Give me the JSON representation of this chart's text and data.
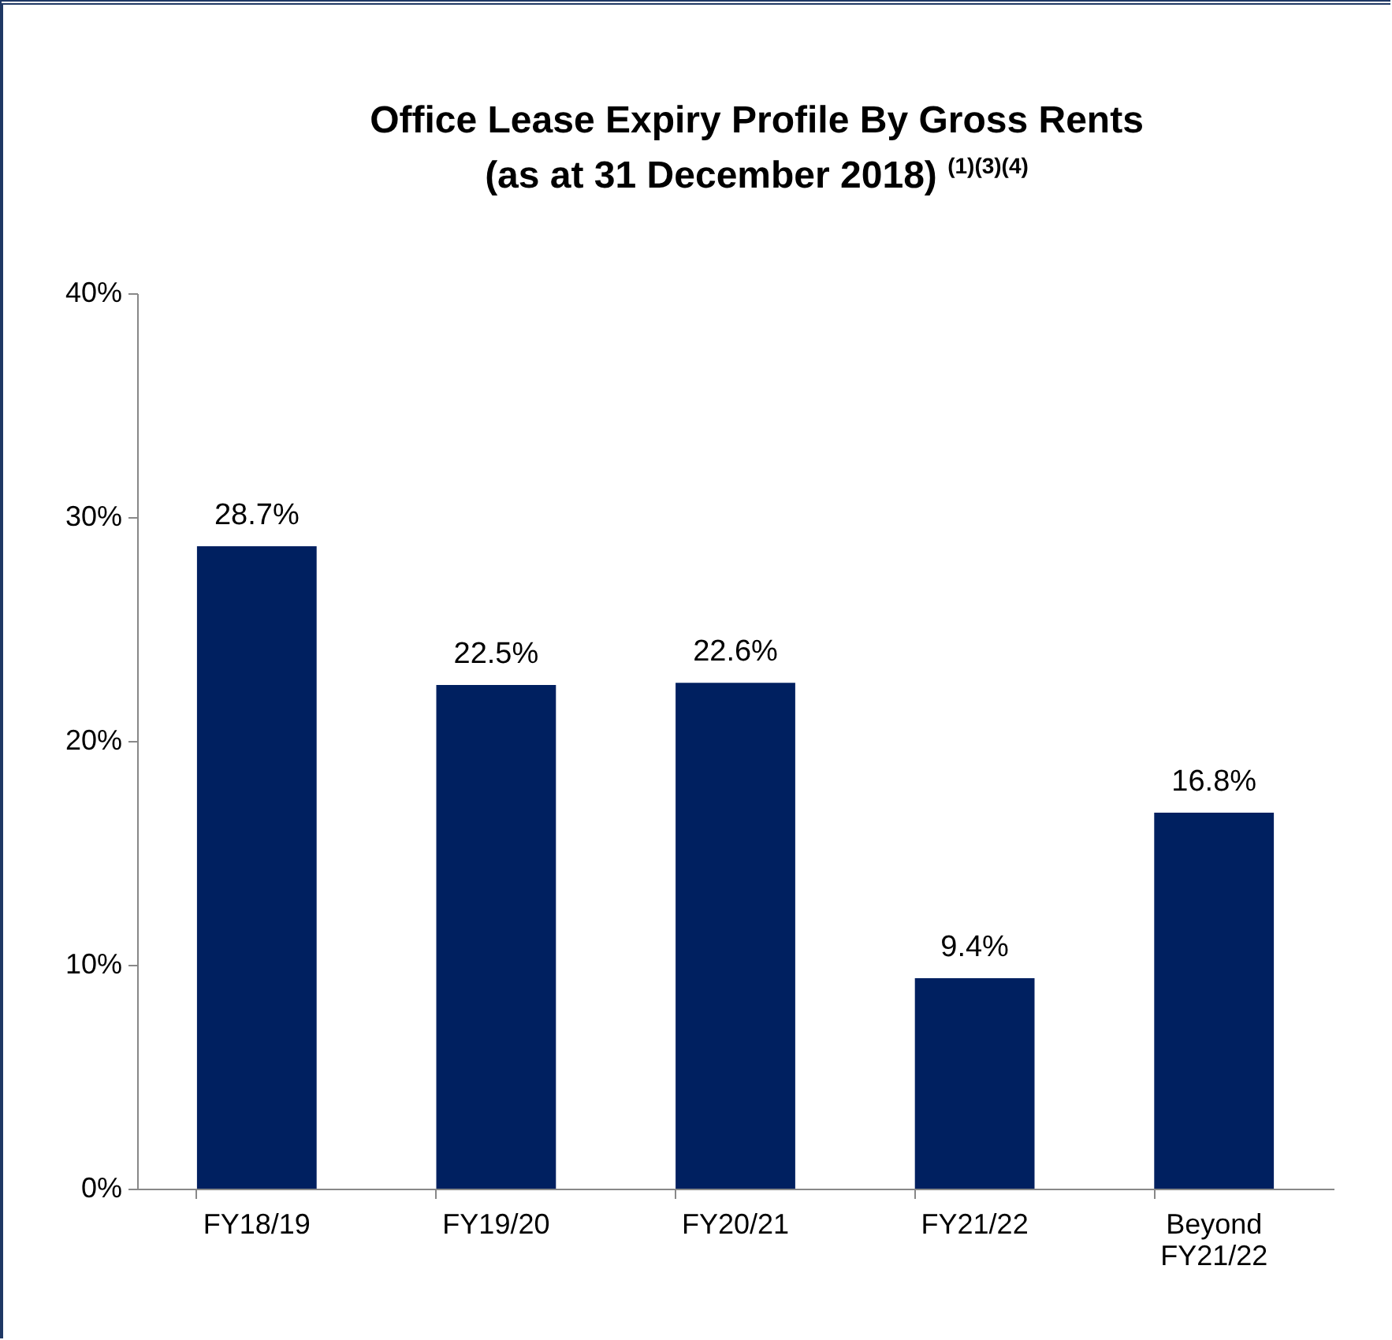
{
  "chart_data": {
    "type": "bar",
    "title": "Office Lease Expiry Profile By Gross Rents",
    "subtitle": "(as at 31 December 2018) $^{(1)(3)(4)}$",
    "categories": [
      "FY18/19",
      "FY19/20",
      "FY20/21",
      "FY21/22",
      "Beyond FY21/22"
    ],
    "values": [
      28.7,
      22.5,
      22.6,
      9.4,
      16.8
    ],
    "value_labels": [
      "28.7%",
      "22.5%",
      "22.6%",
      "9.4%",
      "16.8%"
    ],
    "color": "#002060",
    "ylim": [
      0,
      40
    ],
    "yticks": [
      {
        "value": 0,
        "label": "0%"
      },
      {
        "value": 10,
        "label": "10%"
      },
      {
        "value": 20,
        "label": "20%"
      },
      {
        "value": 30,
        "label": "30%"
      },
      {
        "value": 40,
        "label": "40%"
      }
    ],
    "orientation": "vertical"
  }
}
